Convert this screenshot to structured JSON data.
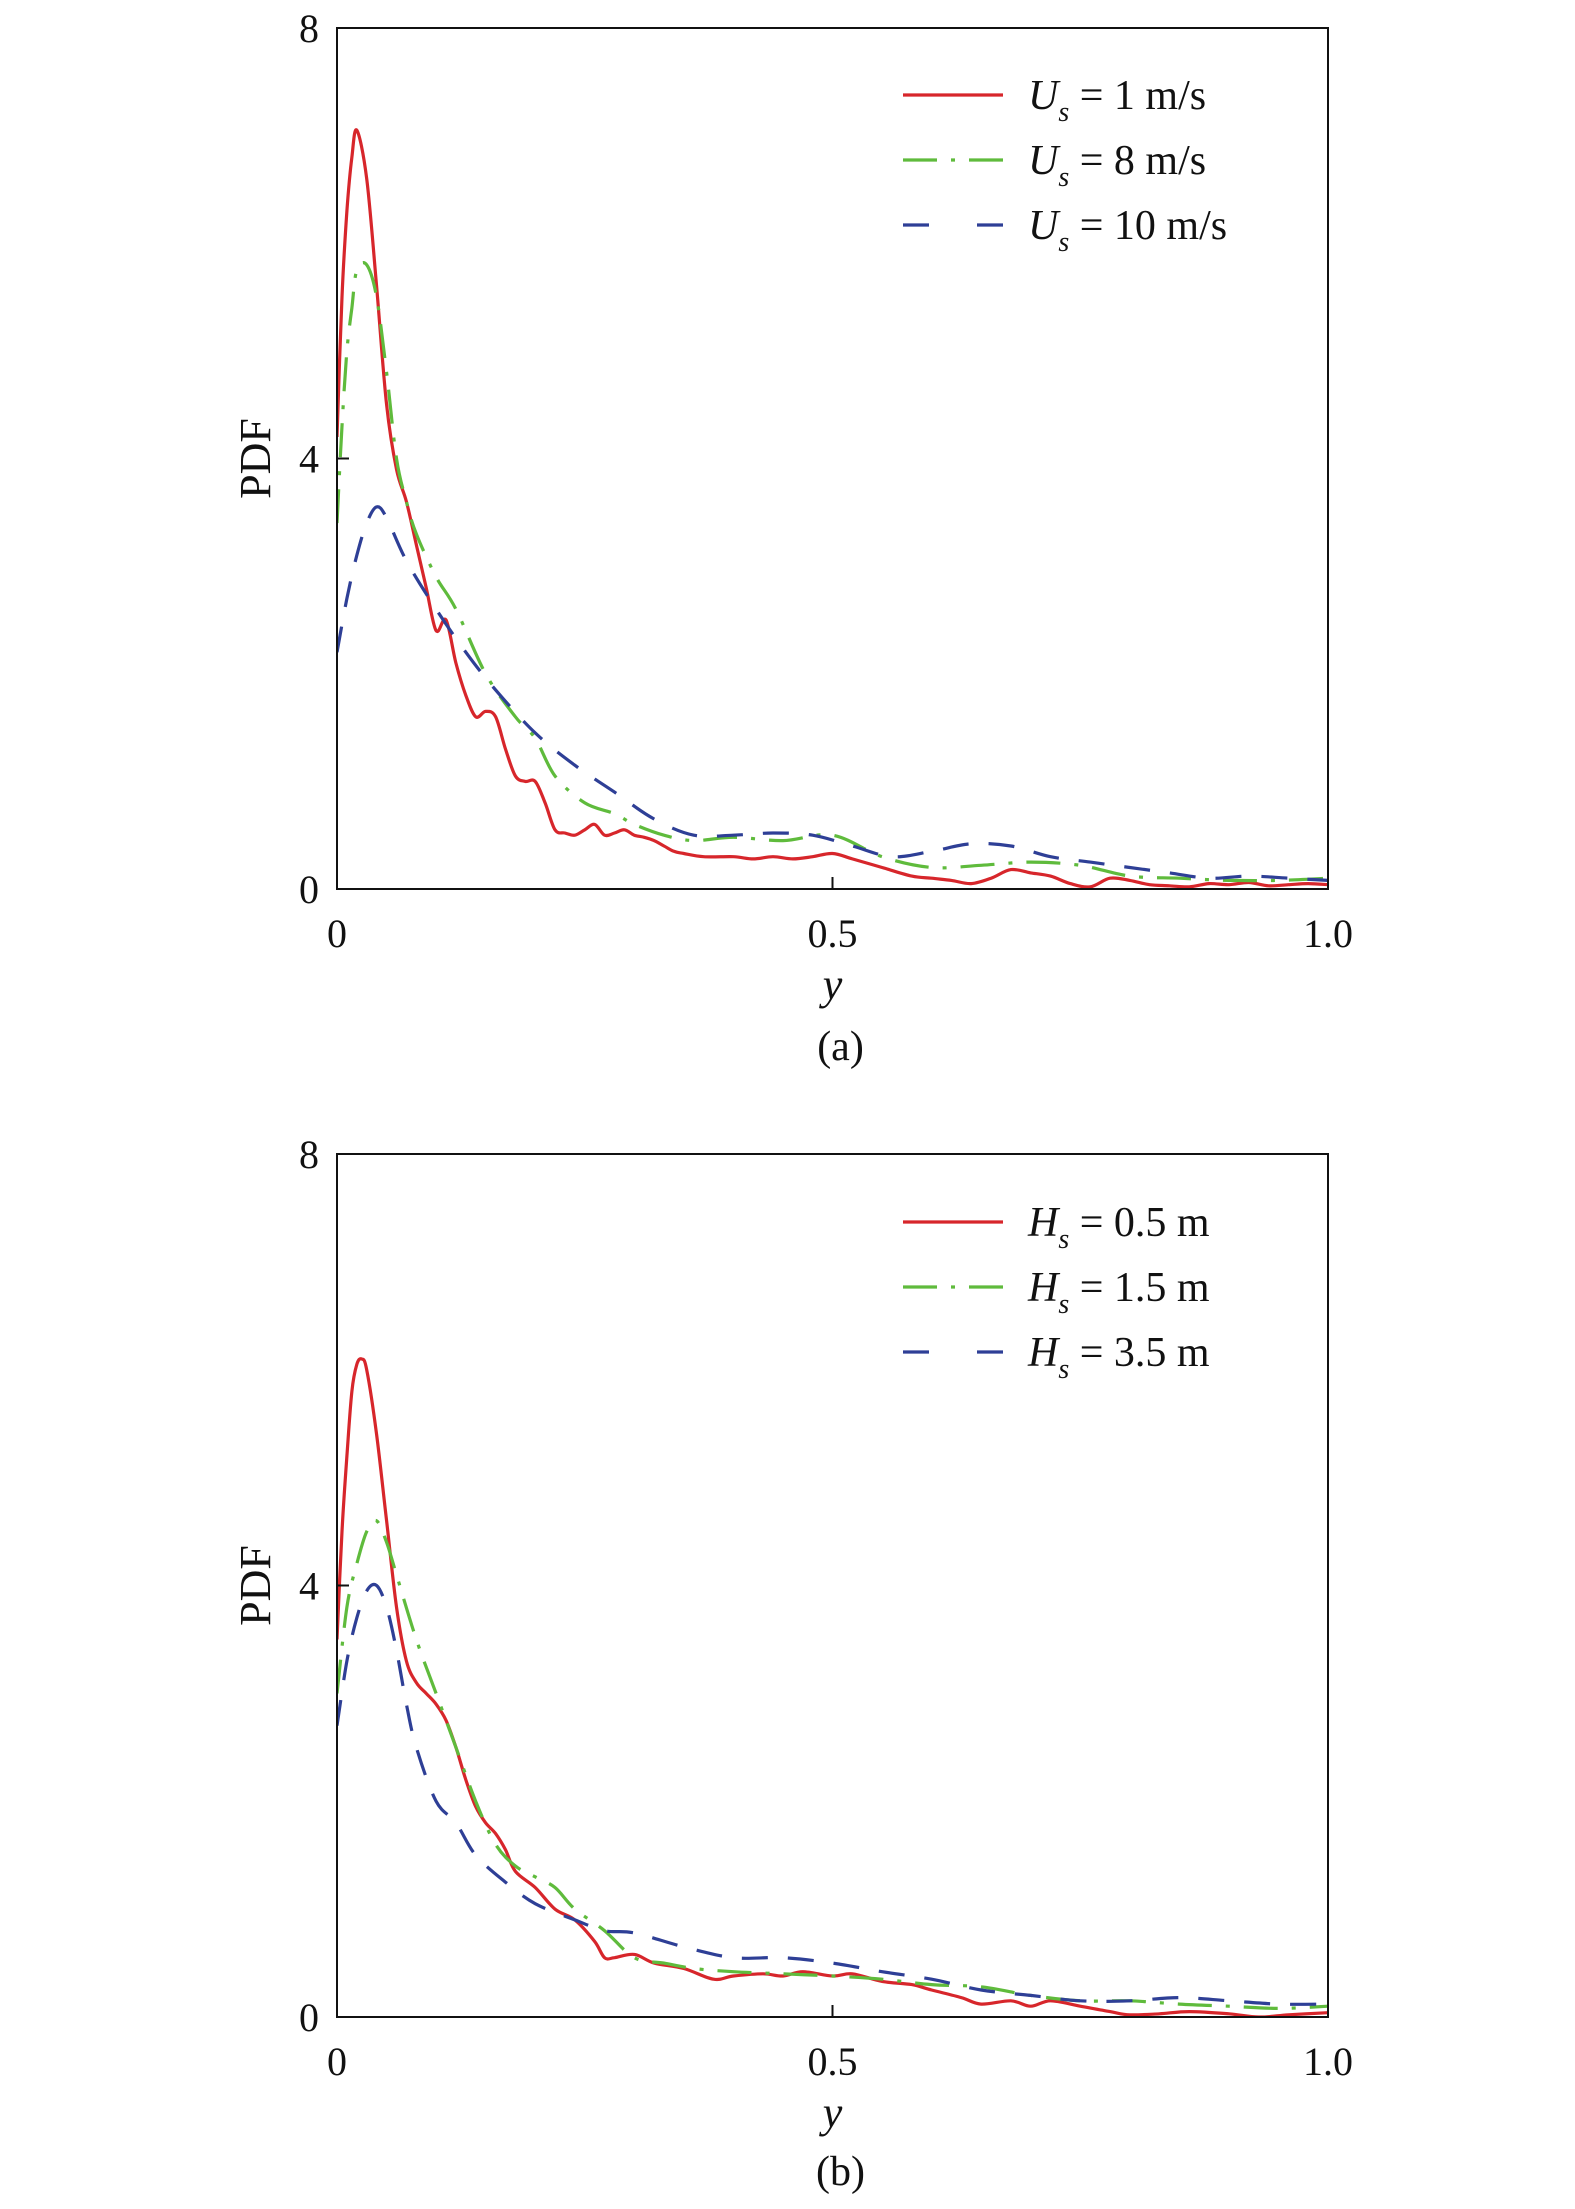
{
  "chart_data": [
    {
      "type": "line",
      "caption": "(a)",
      "xlabel": "y",
      "ylabel": "PDF",
      "xlim": [
        0,
        1.0
      ],
      "ylim": [
        0,
        8
      ],
      "xticks": [
        "0",
        "0.5",
        "1.0"
      ],
      "yticks": [
        "0",
        "4",
        "8"
      ],
      "legend_position": "top-right",
      "grid": false,
      "series": [
        {
          "name": "U_s = 1 m/s",
          "legend_symbol": "U",
          "legend_sub": "s",
          "legend_rest": " = 1 m/s",
          "color": "#d7262b",
          "dash": "solid",
          "x": [
            0.0,
            0.005,
            0.01,
            0.015,
            0.02,
            0.03,
            0.04,
            0.05,
            0.06,
            0.07,
            0.08,
            0.09,
            0.1,
            0.11,
            0.12,
            0.13,
            0.14,
            0.15,
            0.16,
            0.17,
            0.18,
            0.19,
            0.2,
            0.21,
            0.22,
            0.23,
            0.24,
            0.25,
            0.26,
            0.27,
            0.28,
            0.29,
            0.3,
            0.31,
            0.32,
            0.33,
            0.34,
            0.35,
            0.37,
            0.4,
            0.42,
            0.44,
            0.46,
            0.48,
            0.5,
            0.52,
            0.55,
            0.58,
            0.6,
            0.62,
            0.64,
            0.66,
            0.68,
            0.7,
            0.72,
            0.74,
            0.76,
            0.78,
            0.8,
            0.82,
            0.84,
            0.86,
            0.88,
            0.9,
            0.92,
            0.94,
            0.96,
            0.98,
            1.0
          ],
          "values": [
            4.2,
            5.5,
            6.3,
            6.8,
            7.05,
            6.6,
            5.6,
            4.5,
            3.9,
            3.6,
            3.2,
            2.8,
            2.4,
            2.5,
            2.1,
            1.8,
            1.6,
            1.65,
            1.6,
            1.3,
            1.05,
            1.0,
            1.0,
            0.8,
            0.55,
            0.52,
            0.5,
            0.55,
            0.6,
            0.5,
            0.52,
            0.55,
            0.5,
            0.48,
            0.45,
            0.4,
            0.35,
            0.33,
            0.3,
            0.3,
            0.28,
            0.3,
            0.28,
            0.3,
            0.33,
            0.28,
            0.2,
            0.12,
            0.1,
            0.08,
            0.05,
            0.1,
            0.18,
            0.15,
            0.12,
            0.05,
            0.02,
            0.1,
            0.08,
            0.04,
            0.03,
            0.02,
            0.05,
            0.04,
            0.06,
            0.03,
            0.04,
            0.05,
            0.04
          ]
        },
        {
          "name": "U_s = 8 m/s",
          "legend_symbol": "U",
          "legend_sub": "s",
          "legend_rest": " = 8 m/s",
          "color": "#5fbb3c",
          "dash": "dashdot",
          "x": [
            0.0,
            0.005,
            0.01,
            0.015,
            0.02,
            0.03,
            0.04,
            0.05,
            0.06,
            0.07,
            0.08,
            0.1,
            0.12,
            0.15,
            0.18,
            0.2,
            0.22,
            0.25,
            0.28,
            0.3,
            0.33,
            0.36,
            0.4,
            0.45,
            0.5,
            0.55,
            0.6,
            0.65,
            0.7,
            0.75,
            0.8,
            0.85,
            0.9,
            0.95,
            1.0
          ],
          "values": [
            3.4,
            4.3,
            5.0,
            5.4,
            5.75,
            5.8,
            5.5,
            4.8,
            4.0,
            3.6,
            3.3,
            2.9,
            2.6,
            2.0,
            1.6,
            1.4,
            1.05,
            0.8,
            0.7,
            0.6,
            0.5,
            0.45,
            0.48,
            0.45,
            0.5,
            0.3,
            0.2,
            0.22,
            0.25,
            0.22,
            0.12,
            0.1,
            0.08,
            0.08,
            0.1
          ]
        },
        {
          "name": "U_s = 10 m/s",
          "legend_symbol": "U",
          "legend_sub": "s",
          "legend_rest": " = 10 m/s",
          "color": "#2e3f96",
          "dash": "dashed",
          "x": [
            0.0,
            0.01,
            0.02,
            0.03,
            0.04,
            0.05,
            0.07,
            0.1,
            0.13,
            0.16,
            0.2,
            0.24,
            0.28,
            0.32,
            0.36,
            0.4,
            0.44,
            0.48,
            0.52,
            0.56,
            0.6,
            0.64,
            0.68,
            0.72,
            0.76,
            0.8,
            0.84,
            0.88,
            0.92,
            0.96,
            1.0
          ],
          "values": [
            2.2,
            2.7,
            3.1,
            3.4,
            3.55,
            3.45,
            3.05,
            2.6,
            2.2,
            1.85,
            1.45,
            1.15,
            0.9,
            0.65,
            0.5,
            0.5,
            0.52,
            0.5,
            0.4,
            0.3,
            0.35,
            0.42,
            0.4,
            0.3,
            0.25,
            0.2,
            0.15,
            0.1,
            0.12,
            0.1,
            0.08
          ]
        }
      ]
    },
    {
      "type": "line",
      "caption": "(b)",
      "xlabel": "y",
      "ylabel": "PDF",
      "xlim": [
        0,
        1.0
      ],
      "ylim": [
        0,
        8
      ],
      "xticks": [
        "0",
        "0.5",
        "1.0"
      ],
      "yticks": [
        "0",
        "4",
        "8"
      ],
      "legend_position": "top-right",
      "grid": false,
      "series": [
        {
          "name": "H_s = 0.5 m",
          "legend_symbol": "H",
          "legend_sub": "s",
          "legend_rest": " = 0.5 m",
          "color": "#d7262b",
          "dash": "solid",
          "x": [
            0.0,
            0.005,
            0.01,
            0.015,
            0.02,
            0.025,
            0.03,
            0.04,
            0.05,
            0.06,
            0.07,
            0.08,
            0.09,
            0.1,
            0.11,
            0.12,
            0.13,
            0.14,
            0.15,
            0.16,
            0.17,
            0.18,
            0.2,
            0.22,
            0.24,
            0.26,
            0.27,
            0.28,
            0.3,
            0.32,
            0.35,
            0.38,
            0.4,
            0.43,
            0.45,
            0.47,
            0.5,
            0.52,
            0.55,
            0.58,
            0.6,
            0.63,
            0.65,
            0.68,
            0.7,
            0.72,
            0.75,
            0.78,
            0.8,
            0.83,
            0.86,
            0.9,
            0.93,
            0.96,
            1.0
          ],
          "values": [
            3.5,
            4.5,
            5.2,
            5.8,
            6.05,
            6.1,
            6.0,
            5.4,
            4.6,
            3.8,
            3.3,
            3.1,
            3.0,
            2.9,
            2.75,
            2.5,
            2.2,
            1.95,
            1.8,
            1.7,
            1.55,
            1.35,
            1.2,
            1.0,
            0.9,
            0.7,
            0.55,
            0.55,
            0.58,
            0.5,
            0.45,
            0.35,
            0.38,
            0.4,
            0.38,
            0.42,
            0.38,
            0.4,
            0.33,
            0.3,
            0.25,
            0.18,
            0.12,
            0.15,
            0.1,
            0.15,
            0.1,
            0.05,
            0.02,
            0.03,
            0.05,
            0.03,
            0.0,
            0.02,
            0.04
          ]
        },
        {
          "name": "H_s = 1.5 m",
          "legend_symbol": "H",
          "legend_sub": "s",
          "legend_rest": " = 1.5 m",
          "color": "#5fbb3c",
          "dash": "dashdot",
          "x": [
            0.0,
            0.01,
            0.02,
            0.03,
            0.04,
            0.05,
            0.06,
            0.08,
            0.1,
            0.12,
            0.14,
            0.16,
            0.18,
            0.2,
            0.22,
            0.24,
            0.27,
            0.3,
            0.33,
            0.36,
            0.4,
            0.45,
            0.5,
            0.55,
            0.6,
            0.65,
            0.7,
            0.75,
            0.8,
            0.85,
            0.9,
            0.95,
            1.0
          ],
          "values": [
            3.0,
            3.8,
            4.2,
            4.5,
            4.6,
            4.4,
            4.1,
            3.5,
            3.0,
            2.5,
            2.0,
            1.6,
            1.4,
            1.3,
            1.2,
            1.0,
            0.8,
            0.55,
            0.5,
            0.45,
            0.42,
            0.4,
            0.38,
            0.35,
            0.3,
            0.28,
            0.2,
            0.15,
            0.15,
            0.12,
            0.1,
            0.08,
            0.1
          ]
        },
        {
          "name": "H_s = 3.5 m",
          "legend_symbol": "H",
          "legend_sub": "s",
          "legend_rest": " = 3.5 m",
          "color": "#2e3f96",
          "dash": "dashed",
          "x": [
            0.0,
            0.01,
            0.02,
            0.03,
            0.04,
            0.05,
            0.06,
            0.07,
            0.08,
            0.1,
            0.12,
            0.14,
            0.17,
            0.2,
            0.24,
            0.27,
            0.3,
            0.35,
            0.4,
            0.45,
            0.5,
            0.55,
            0.6,
            0.65,
            0.7,
            0.75,
            0.8,
            0.85,
            0.9,
            0.95,
            1.0
          ],
          "values": [
            2.7,
            3.3,
            3.7,
            3.95,
            4.0,
            3.8,
            3.4,
            2.9,
            2.5,
            2.0,
            1.8,
            1.5,
            1.25,
            1.05,
            0.9,
            0.8,
            0.78,
            0.65,
            0.55,
            0.55,
            0.5,
            0.42,
            0.35,
            0.25,
            0.2,
            0.15,
            0.15,
            0.18,
            0.15,
            0.12,
            0.12
          ]
        }
      ]
    }
  ]
}
